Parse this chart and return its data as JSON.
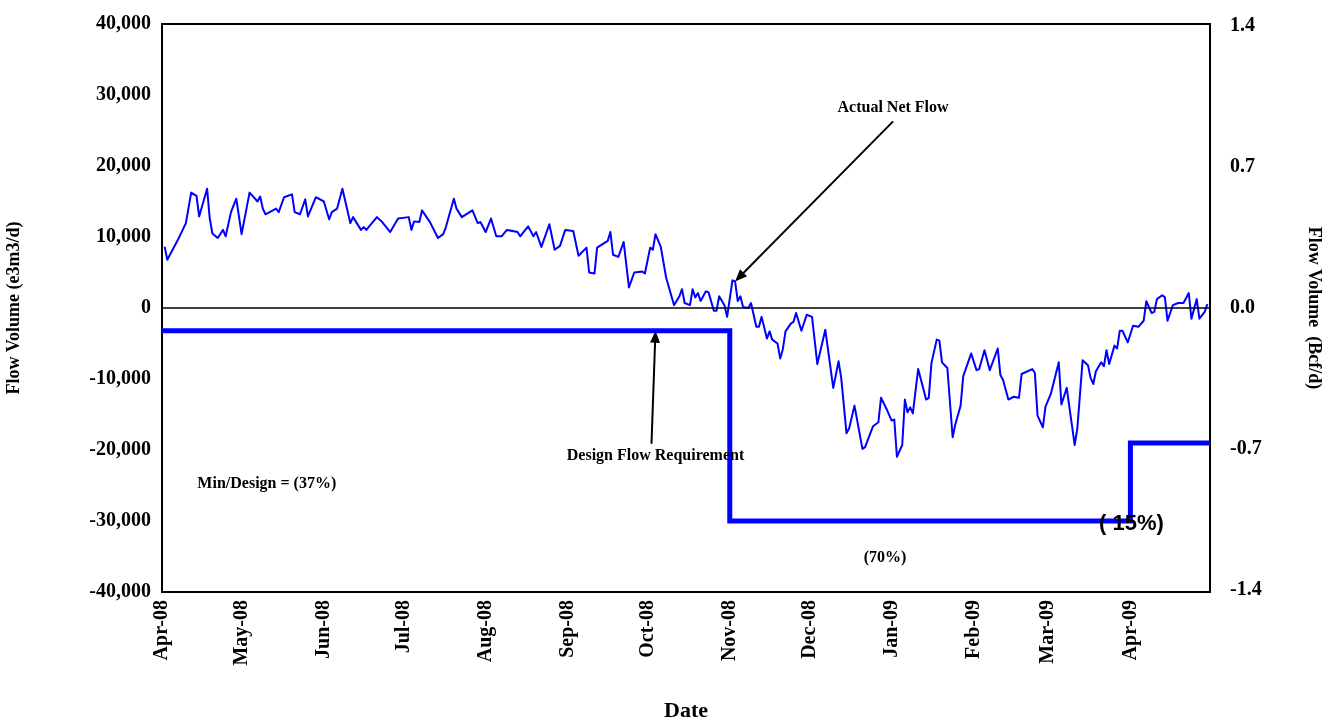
{
  "chart_data": {
    "type": "line",
    "xlabel": "Date",
    "ylabel": "Flow Volume (e3m3/d)",
    "y2label": "Flow Volume  (Bcf/d)",
    "xlim": [
      "2008-04-01",
      "2009-05-01"
    ],
    "xticks": [
      {
        "value": "2008-04-01",
        "label": "Apr-08"
      },
      {
        "value": "2008-05-01",
        "label": "May-08"
      },
      {
        "value": "2008-06-01",
        "label": "Jun-08"
      },
      {
        "value": "2008-07-01",
        "label": "Jul-08"
      },
      {
        "value": "2008-08-01",
        "label": "Aug-08"
      },
      {
        "value": "2008-09-01",
        "label": "Sep-08"
      },
      {
        "value": "2008-10-01",
        "label": "Oct-08"
      },
      {
        "value": "2008-11-01",
        "label": "Nov-08"
      },
      {
        "value": "2008-12-01",
        "label": "Dec-08"
      },
      {
        "value": "2009-01-01",
        "label": "Jan-09"
      },
      {
        "value": "2009-02-01",
        "label": "Feb-09"
      },
      {
        "value": "2009-03-01",
        "label": "Mar-09"
      },
      {
        "value": "2009-04-01",
        "label": "Apr-09"
      }
    ],
    "ylim": [
      -40000,
      40000
    ],
    "yticks": [
      {
        "value": -40000,
        "label": "-40,000"
      },
      {
        "value": -30000,
        "label": "-30,000"
      },
      {
        "value": -20000,
        "label": "-20,000"
      },
      {
        "value": -10000,
        "label": "-10,000"
      },
      {
        "value": 0,
        "label": "0"
      },
      {
        "value": 10000,
        "label": "10,000"
      },
      {
        "value": 20000,
        "label": "20,000"
      },
      {
        "value": 30000,
        "label": "30,000"
      },
      {
        "value": 40000,
        "label": "40,000"
      }
    ],
    "y2lim": [
      -1.41,
      1.41
    ],
    "y2ticks": [
      -1.4,
      -0.7,
      {
        "value": 0,
        "label": "0.0"
      },
      0.7,
      1.4
    ],
    "grid": false,
    "legend": false,
    "marker": "none",
    "ref_lines": [
      {
        "axis": "y",
        "value": 0,
        "color": "#000000"
      }
    ],
    "series": [
      {
        "type": "line",
        "color": "#0000ff",
        "x": [
          "2008-04-02",
          "2008-04-03",
          "2008-04-07",
          "2008-04-10",
          "2008-04-12",
          "2008-04-14",
          "2008-04-15",
          "2008-04-18",
          "2008-04-19",
          "2008-04-20",
          "2008-04-22",
          "2008-04-24",
          "2008-04-25",
          "2008-04-27",
          "2008-04-29",
          "2008-05-01",
          "2008-05-04",
          "2008-05-07",
          "2008-05-08",
          "2008-05-09",
          "2008-05-10",
          "2008-05-14",
          "2008-05-15",
          "2008-05-17",
          "2008-05-20",
          "2008-05-21",
          "2008-05-23",
          "2008-05-25",
          "2008-05-26",
          "2008-05-29",
          "2008-06-01",
          "2008-06-03",
          "2008-06-04",
          "2008-06-06",
          "2008-06-08",
          "2008-06-11",
          "2008-06-12",
          "2008-06-15",
          "2008-06-16",
          "2008-06-17",
          "2008-06-21",
          "2008-06-23",
          "2008-06-26",
          "2008-06-29",
          "2008-07-03",
          "2008-07-04",
          "2008-07-05",
          "2008-07-07",
          "2008-07-08",
          "2008-07-11",
          "2008-07-14",
          "2008-07-16",
          "2008-07-17",
          "2008-07-20",
          "2008-07-21",
          "2008-07-23",
          "2008-07-27",
          "2008-07-29",
          "2008-07-30",
          "2008-08-01",
          "2008-08-03",
          "2008-08-05",
          "2008-08-07",
          "2008-08-09",
          "2008-08-13",
          "2008-08-14",
          "2008-08-17",
          "2008-08-19",
          "2008-08-20",
          "2008-08-22",
          "2008-08-25",
          "2008-08-27",
          "2008-08-29",
          "2008-08-31",
          "2008-09-03",
          "2008-09-05",
          "2008-09-08",
          "2008-09-09",
          "2008-09-11",
          "2008-09-12",
          "2008-09-16",
          "2008-09-17",
          "2008-09-18",
          "2008-09-20",
          "2008-09-22",
          "2008-09-24",
          "2008-09-26",
          "2008-09-29",
          "2008-09-30",
          "2008-10-02",
          "2008-10-03",
          "2008-10-04",
          "2008-10-06",
          "2008-10-08",
          "2008-10-11",
          "2008-10-13",
          "2008-10-14",
          "2008-10-15",
          "2008-10-17",
          "2008-10-18",
          "2008-10-19",
          "2008-10-20",
          "2008-10-21",
          "2008-10-23",
          "2008-10-24",
          "2008-10-26",
          "2008-10-27",
          "2008-10-28",
          "2008-10-30",
          "2008-10-31",
          "2008-11-02",
          "2008-11-03",
          "2008-11-04",
          "2008-11-05",
          "2008-11-06",
          "2008-11-08",
          "2008-11-09",
          "2008-11-11",
          "2008-11-12",
          "2008-11-13",
          "2008-11-15",
          "2008-11-16",
          "2008-11-17",
          "2008-11-19",
          "2008-11-20",
          "2008-11-21",
          "2008-11-22",
          "2008-11-24",
          "2008-11-25",
          "2008-11-26",
          "2008-11-28",
          "2008-11-30",
          "2008-12-02",
          "2008-12-04",
          "2008-12-07",
          "2008-12-10",
          "2008-12-12",
          "2008-12-13",
          "2008-12-15",
          "2008-12-16",
          "2008-12-18",
          "2008-12-21",
          "2008-12-22",
          "2008-12-25",
          "2008-12-27",
          "2008-12-28",
          "2008-12-30",
          "2009-01-01",
          "2009-01-02",
          "2009-01-03",
          "2009-01-05",
          "2009-01-06",
          "2009-01-07",
          "2009-01-08",
          "2009-01-09",
          "2009-01-11",
          "2009-01-14",
          "2009-01-15",
          "2009-01-16",
          "2009-01-18",
          "2009-01-19",
          "2009-01-20",
          "2009-01-22",
          "2009-01-24",
          "2009-01-25",
          "2009-01-27",
          "2009-01-28",
          "2009-01-31",
          "2009-02-02",
          "2009-02-03",
          "2009-02-05",
          "2009-02-07",
          "2009-02-10",
          "2009-02-11",
          "2009-02-12",
          "2009-02-14",
          "2009-02-16",
          "2009-02-18",
          "2009-02-19",
          "2009-02-23",
          "2009-02-24",
          "2009-02-25",
          "2009-02-27",
          "2009-02-28",
          "2009-03-02",
          "2009-03-05",
          "2009-03-06",
          "2009-03-08",
          "2009-03-11",
          "2009-03-12",
          "2009-03-14",
          "2009-03-16",
          "2009-03-17",
          "2009-03-18",
          "2009-03-19",
          "2009-03-21",
          "2009-03-22",
          "2009-03-23",
          "2009-03-24",
          "2009-03-26",
          "2009-03-27",
          "2009-03-28",
          "2009-03-29",
          "2009-03-31",
          "2009-04-02",
          "2009-04-04",
          "2009-04-06",
          "2009-04-07",
          "2009-04-09",
          "2009-04-10",
          "2009-04-11",
          "2009-04-13",
          "2009-04-14",
          "2009-04-15",
          "2009-04-17",
          "2009-04-19",
          "2009-04-21",
          "2009-04-23",
          "2009-04-24",
          "2009-04-26",
          "2009-04-27",
          "2009-04-29",
          "2009-04-30"
        ],
        "values": [
          8650,
          6800,
          9600,
          11950,
          16250,
          15800,
          12900,
          16800,
          12600,
          10500,
          9850,
          11000,
          10100,
          13500,
          15400,
          10400,
          16250,
          15000,
          15700,
          14000,
          13200,
          14000,
          13500,
          15600,
          16000,
          13500,
          13200,
          15300,
          12900,
          15600,
          15000,
          12500,
          13500,
          14000,
          16800,
          11950,
          12800,
          11000,
          11400,
          11000,
          12800,
          12100,
          10700,
          12600,
          12800,
          11000,
          12200,
          12100,
          13750,
          12100,
          9850,
          10400,
          11400,
          15400,
          14000,
          12800,
          13750,
          11950,
          12100,
          10700,
          12600,
          10100,
          10100,
          11000,
          10700,
          10100,
          11500,
          10100,
          10700,
          8600,
          11800,
          8200,
          8750,
          11000,
          10850,
          7350,
          8500,
          5000,
          4850,
          8500,
          9450,
          10700,
          7500,
          7200,
          9300,
          2900,
          5000,
          5150,
          4850,
          8500,
          8200,
          10400,
          8600,
          4300,
          400,
          1650,
          2650,
          700,
          400,
          2650,
          1500,
          2100,
          1000,
          2350,
          2200,
          -400,
          -400,
          1650,
          400,
          -1250,
          3900,
          3750,
          1000,
          1650,
          150,
          0,
          700,
          -2650,
          -2650,
          -1250,
          -4300,
          -3300,
          -4450,
          -5000,
          -7100,
          -5800,
          -3300,
          -2200,
          -1950,
          -700,
          -3200,
          -950,
          -1250,
          -7900,
          -3050,
          -11250,
          -7500,
          -9850,
          -17650,
          -16950,
          -13750,
          -19850,
          -19600,
          -16650,
          -16100,
          -12650,
          -14150,
          -15850,
          -15700,
          -20950,
          -19300,
          -12900,
          -14700,
          -14000,
          -14850,
          -8600,
          -12900,
          -12650,
          -7800,
          -4450,
          -4600,
          -7650,
          -8450,
          -18200,
          -16400,
          -13750,
          -9600,
          -6400,
          -8750,
          -8600,
          -5950,
          -8750,
          -5700,
          -9450,
          -10150,
          -12900,
          -12500,
          -12650,
          -9300,
          -8600,
          -9150,
          -15150,
          -16800,
          -13900,
          -12100,
          -7650,
          -13600,
          -11250,
          -19300,
          -16950,
          -7350,
          -8050,
          -9850,
          -10700,
          -8900,
          -7650,
          -8200,
          -5950,
          -7900,
          -5300,
          -5700,
          -3200,
          -3200,
          -4850,
          -2500,
          -2650,
          -1800,
          950,
          -700,
          -550,
          1250,
          1800,
          1500,
          -1800,
          400,
          700,
          700,
          2100,
          -1500,
          1250,
          -1500,
          -550,
          550
        ]
      },
      {
        "type": "step",
        "color": "#0000ff",
        "x": [
          "2008-04-01",
          "2008-11-01",
          "2009-04-01",
          "2009-05-01"
        ],
        "values": [
          -3200,
          -30000,
          -19000,
          -19000
        ]
      }
    ],
    "annotations": [
      {
        "text": "Actual Net Flow",
        "x": "2008-11-03",
        "y": 3750
      },
      {
        "text": "Design Flow Requirement",
        "x": "2008-10-04",
        "y": -3200
      },
      "Min/Design = (37%)",
      "(70%)",
      "( 15%)"
    ]
  }
}
